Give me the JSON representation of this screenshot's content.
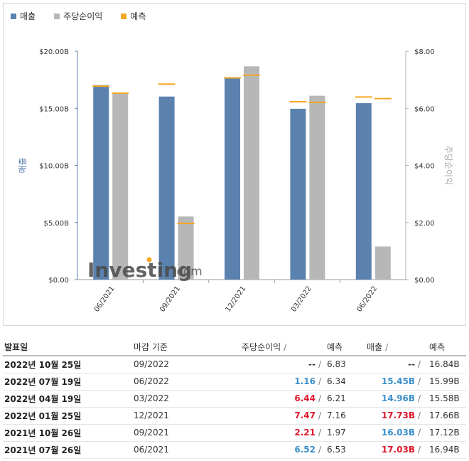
{
  "legend": [
    {
      "label": "매출",
      "color": "#5b82ae"
    },
    {
      "label": "주당순이익",
      "color": "#b7b7b7"
    },
    {
      "label": "예측",
      "color": "#f5a623"
    }
  ],
  "chart_data": {
    "type": "bar",
    "categories": [
      "06/2021",
      "09/2021",
      "12/2021",
      "03/2022",
      "06/2022"
    ],
    "series": [
      {
        "name": "매출",
        "axis": "left",
        "values": [
          17.03,
          16.03,
          17.73,
          14.96,
          15.45
        ],
        "color": "#5b82ae"
      },
      {
        "name": "주당순이익",
        "axis": "right",
        "values": [
          6.52,
          2.21,
          7.47,
          6.44,
          1.16
        ],
        "color": "#b7b7b7"
      }
    ],
    "forecasts": {
      "name": "예측",
      "color": "#f5a623",
      "revenue": [
        16.94,
        17.12,
        17.66,
        15.58,
        15.99
      ],
      "eps": [
        6.53,
        1.97,
        7.16,
        6.21,
        6.34
      ]
    },
    "left_axis": {
      "label": "매출",
      "ticks": [
        "$0.00",
        "$5.00B",
        "$10.00B",
        "$15.00B",
        "$20.00B"
      ],
      "ylim": [
        0,
        20
      ]
    },
    "right_axis": {
      "label": "주당순이익",
      "ticks": [
        "$0.00",
        "$2.00",
        "$4.00",
        "$6.00",
        "$8.00"
      ],
      "ylim": [
        0,
        8
      ]
    },
    "watermark": {
      "brand": "Investing",
      "suffix": ".com"
    }
  },
  "table": {
    "headers": {
      "date": "발표일",
      "period": "마감 기준",
      "eps": "주당순이익",
      "forecast": "예측",
      "revenue": "매출",
      "forecast2": "예측",
      "sep": "/"
    },
    "rows": [
      {
        "date": "2022년 10월 25일",
        "period": "09/2022",
        "eps": "--",
        "eps_class": "neutral",
        "eps_forecast": "6.83",
        "revenue": "--",
        "rev_class": "neutral",
        "rev_forecast": "16.84B"
      },
      {
        "date": "2022년 07월 19일",
        "period": "06/2022",
        "eps": "1.16",
        "eps_class": "up",
        "eps_forecast": "6.34",
        "revenue": "15.45B",
        "rev_class": "up",
        "rev_forecast": "15.99B"
      },
      {
        "date": "2022년 04월 19일",
        "period": "03/2022",
        "eps": "6.44",
        "eps_class": "down",
        "eps_forecast": "6.21",
        "revenue": "14.96B",
        "rev_class": "up",
        "rev_forecast": "15.58B"
      },
      {
        "date": "2022년 01월 25일",
        "period": "12/2021",
        "eps": "7.47",
        "eps_class": "down",
        "eps_forecast": "7.16",
        "revenue": "17.73B",
        "rev_class": "down",
        "rev_forecast": "17.66B"
      },
      {
        "date": "2021년 10월 26일",
        "period": "09/2021",
        "eps": "2.21",
        "eps_class": "down",
        "eps_forecast": "1.97",
        "revenue": "16.03B",
        "rev_class": "up",
        "rev_forecast": "17.12B"
      },
      {
        "date": "2021년 07월 26일",
        "period": "06/2021",
        "eps": "6.52",
        "eps_class": "up",
        "eps_forecast": "6.53",
        "revenue": "17.03B",
        "rev_class": "down",
        "rev_forecast": "16.94B"
      }
    ]
  }
}
